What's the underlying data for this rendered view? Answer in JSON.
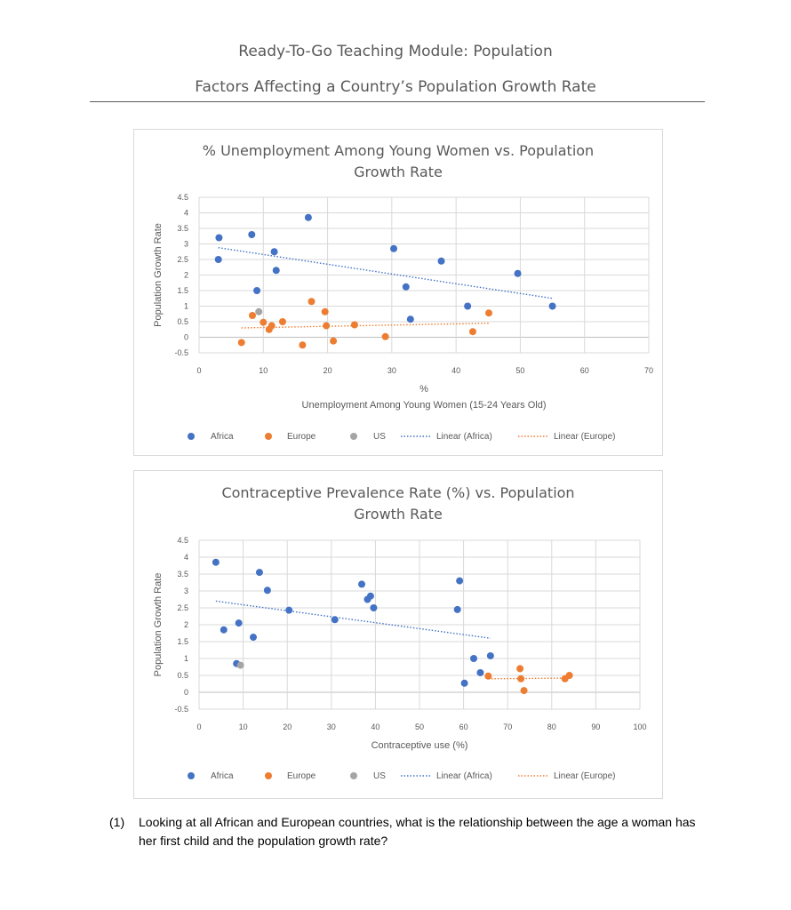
{
  "header": {
    "title": "Ready-To-Go Teaching Module: Population",
    "subtitle": "Factors Affecting a Country’s Population Growth Rate"
  },
  "question": {
    "number": "(1)",
    "text": "Looking at all African and European countries, what is the relationship between the age a woman has her first child and the population growth rate?"
  },
  "colors": {
    "africa": "#4472C4",
    "europe": "#ED7D31",
    "us": "#A5A5A5",
    "grid": "#D9D9D9",
    "axis_text": "#595959"
  },
  "chart_data": [
    {
      "type": "scatter",
      "title": "% Unemployment Among Young Women vs. Population Growth Rate",
      "title_lines": [
        "% Unemployment Among Young Women vs. Population",
        "Growth Rate"
      ],
      "xlabel_lines": [
        "%",
        "Unemployment Among Young Women (15-24 Years Old)"
      ],
      "ylabel": "Population Growth Rate",
      "xlim": [
        0,
        70
      ],
      "ylim": [
        -0.5,
        4.5
      ],
      "xticks": [
        "0",
        "10",
        "20",
        "30",
        "40",
        "50",
        "60",
        "70"
      ],
      "yticks": [
        "-0.5",
        "0",
        "0.5",
        "1",
        "1.5",
        "2",
        "2.5",
        "3",
        "3.5",
        "4",
        "4.5"
      ],
      "grid": true,
      "legend_position": "bottom",
      "legend": [
        "Africa",
        "Europe",
        "US",
        "Linear (Africa)",
        "Linear (Europe)"
      ],
      "series": [
        {
          "name": "Africa",
          "color": "#4472C4",
          "points": [
            [
              3.1,
              3.2
            ],
            [
              3.0,
              2.5
            ],
            [
              8.2,
              3.3
            ],
            [
              9.0,
              1.5
            ],
            [
              11.7,
              2.75
            ],
            [
              12.0,
              2.15
            ],
            [
              17.0,
              3.85
            ],
            [
              30.3,
              2.85
            ],
            [
              32.2,
              1.62
            ],
            [
              32.9,
              0.58
            ],
            [
              37.7,
              2.45
            ],
            [
              41.8,
              1.0
            ],
            [
              49.6,
              2.05
            ],
            [
              55.0,
              1.0
            ]
          ]
        },
        {
          "name": "Europe",
          "color": "#ED7D31",
          "points": [
            [
              6.6,
              -0.17
            ],
            [
              8.3,
              0.7
            ],
            [
              10.0,
              0.48
            ],
            [
              10.9,
              0.25
            ],
            [
              11.3,
              0.37
            ],
            [
              13.0,
              0.5
            ],
            [
              16.1,
              -0.25
            ],
            [
              17.5,
              1.15
            ],
            [
              19.6,
              0.82
            ],
            [
              19.8,
              0.37
            ],
            [
              20.9,
              -0.12
            ],
            [
              24.2,
              0.4
            ],
            [
              29.0,
              0.02
            ],
            [
              42.6,
              0.18
            ],
            [
              45.1,
              0.78
            ]
          ]
        },
        {
          "name": "US",
          "color": "#A5A5A5",
          "points": [
            [
              9.3,
              0.82
            ]
          ]
        }
      ],
      "trendlines": [
        {
          "name": "Linear (Africa)",
          "color": "#4472C4",
          "from": [
            3.0,
            2.88
          ],
          "to": [
            55.0,
            1.25
          ]
        },
        {
          "name": "Linear (Europe)",
          "color": "#ED7D31",
          "from": [
            6.6,
            0.3
          ],
          "to": [
            45.1,
            0.45
          ]
        }
      ]
    },
    {
      "type": "scatter",
      "title": "Contraceptive Prevalence Rate (%) vs. Population Growth Rate",
      "title_lines": [
        "Contraceptive Prevalence Rate (%) vs. Population",
        "Growth Rate"
      ],
      "xlabel_lines": [
        "Contraceptive use (%)"
      ],
      "ylabel": "Population Growth Rate",
      "xlim": [
        0,
        100
      ],
      "ylim": [
        -0.5,
        4.5
      ],
      "xticks": [
        "0",
        "10",
        "20",
        "30",
        "40",
        "50",
        "60",
        "70",
        "80",
        "90",
        "100"
      ],
      "yticks": [
        "-0.5",
        "0",
        "0.5",
        "1",
        "1.5",
        "2",
        "2.5",
        "3",
        "3.5",
        "4",
        "4.5"
      ],
      "grid": true,
      "legend_position": "bottom",
      "legend": [
        "Africa",
        "Europe",
        "US",
        "Linear (Africa)",
        "Linear (Europe)"
      ],
      "series": [
        {
          "name": "Africa",
          "color": "#4472C4",
          "points": [
            [
              3.8,
              3.85
            ],
            [
              5.6,
              1.85
            ],
            [
              8.5,
              0.85
            ],
            [
              9.0,
              2.05
            ],
            [
              12.3,
              1.63
            ],
            [
              13.7,
              3.55
            ],
            [
              15.5,
              3.02
            ],
            [
              20.4,
              2.43
            ],
            [
              30.8,
              2.15
            ],
            [
              36.9,
              3.2
            ],
            [
              38.2,
              2.75
            ],
            [
              38.9,
              2.85
            ],
            [
              39.6,
              2.5
            ],
            [
              58.6,
              2.45
            ],
            [
              59.1,
              3.3
            ],
            [
              60.2,
              0.27
            ],
            [
              62.3,
              1.0
            ],
            [
              63.8,
              0.58
            ],
            [
              66.1,
              1.08
            ]
          ]
        },
        {
          "name": "Europe",
          "color": "#ED7D31",
          "points": [
            [
              65.6,
              0.48
            ],
            [
              72.8,
              0.7
            ],
            [
              73.0,
              0.4
            ],
            [
              73.7,
              0.05
            ],
            [
              83.0,
              0.4
            ],
            [
              84.0,
              0.5
            ]
          ]
        },
        {
          "name": "US",
          "color": "#A5A5A5",
          "points": [
            [
              9.4,
              0.8
            ]
          ]
        }
      ],
      "trendlines": [
        {
          "name": "Linear (Africa)",
          "color": "#4472C4",
          "from": [
            3.8,
            2.7
          ],
          "to": [
            66.1,
            1.6
          ]
        },
        {
          "name": "Linear (Europe)",
          "color": "#ED7D31",
          "from": [
            65.6,
            0.4
          ],
          "to": [
            84.0,
            0.42
          ]
        }
      ]
    }
  ]
}
